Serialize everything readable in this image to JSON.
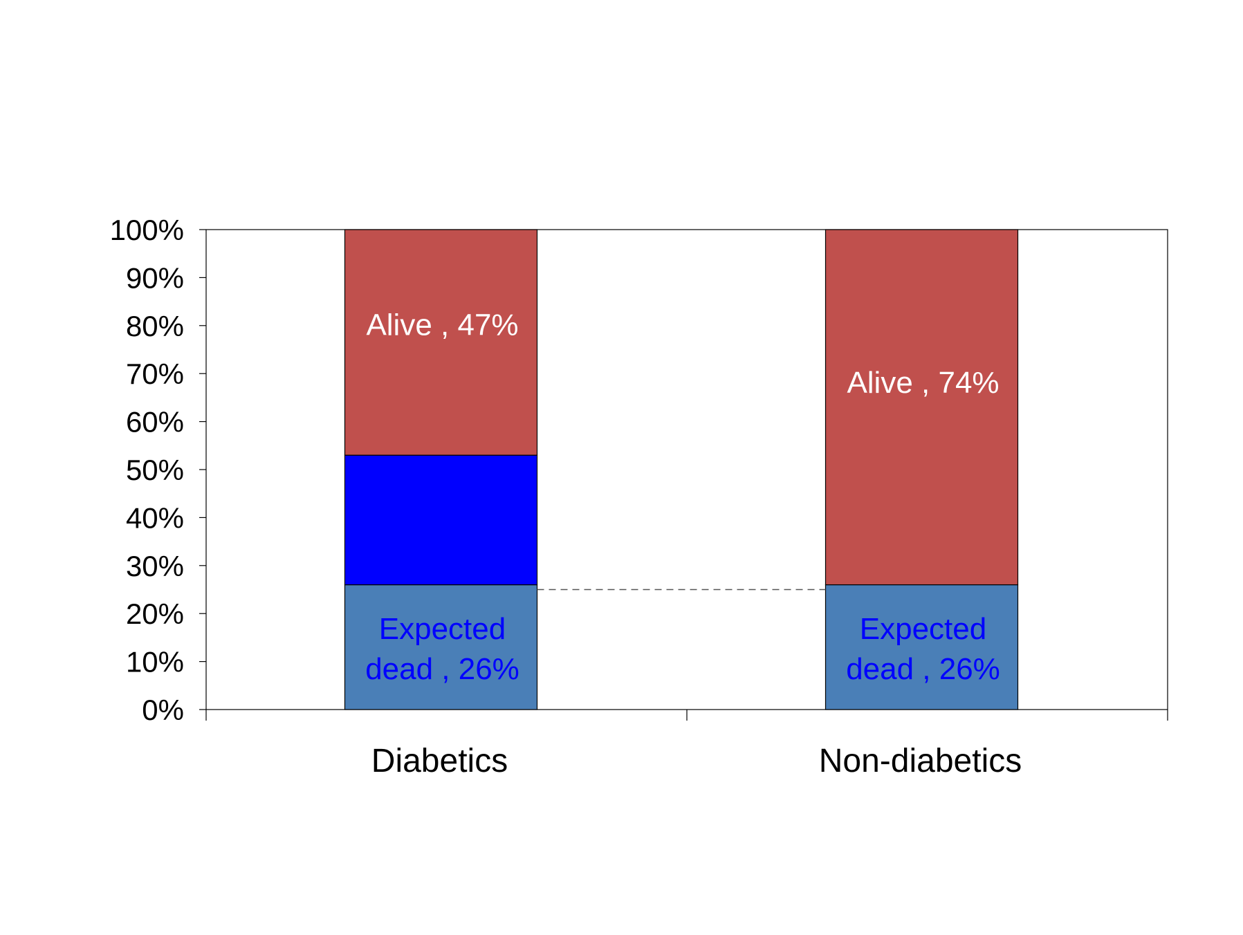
{
  "chart_data": {
    "type": "bar",
    "stacked": true,
    "percent_scale": true,
    "categories": [
      "Diabetics",
      "Non-diabetics"
    ],
    "series": [
      {
        "name": "Expected dead",
        "color": "#4a7fb7",
        "label_color": "#0000ff",
        "values": [
          26,
          26
        ],
        "labels": [
          [
            "Expected",
            "dead , 26%"
          ],
          [
            "Expected",
            "dead , 26%"
          ]
        ]
      },
      {
        "name": "",
        "color": "#0000ff",
        "label_color": "#ffffff",
        "values": [
          27,
          0
        ],
        "labels": [
          [],
          []
        ]
      },
      {
        "name": "Alive",
        "color": "#c0504d",
        "label_color": "#ffffff",
        "values": [
          47,
          74
        ],
        "labels": [
          [
            "Alive , 47%"
          ],
          [
            "Alive , 74%"
          ]
        ]
      }
    ],
    "reference_line": {
      "value": 25,
      "style": "dashed"
    },
    "ylim": [
      0,
      100
    ],
    "yticks": [
      "0%",
      "10%",
      "20%",
      "30%",
      "40%",
      "50%",
      "60%",
      "70%",
      "80%",
      "90%",
      "100%"
    ],
    "title": "",
    "xlabel": "",
    "ylabel": "",
    "grid": false,
    "legend": "none"
  }
}
